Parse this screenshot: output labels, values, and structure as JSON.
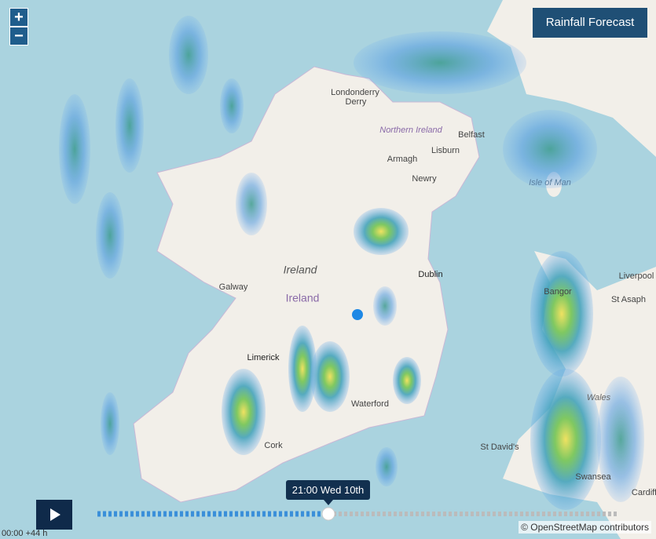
{
  "map_controls": {
    "zoom_in": "+",
    "zoom_out": "−"
  },
  "title": "Rainfall Forecast",
  "place_labels": [
    "Londonderry",
    "Derry",
    "Northern Ireland",
    "Belfast",
    "Lisburn",
    "Armagh",
    "Newry",
    "Isle of Man",
    "Dublin",
    "Ireland",
    "Ireland",
    "Galway",
    "Limerick",
    "Waterford",
    "Cork",
    "Bangor",
    "St Asaph",
    "Liverpool",
    "Wales",
    "St David's",
    "Swansea",
    "Cardiff"
  ],
  "timeline": {
    "current_time": "21:00 Wed 10th",
    "range_label": "00:00 +44 h"
  },
  "attribution": "© OpenStreetMap contributors"
}
